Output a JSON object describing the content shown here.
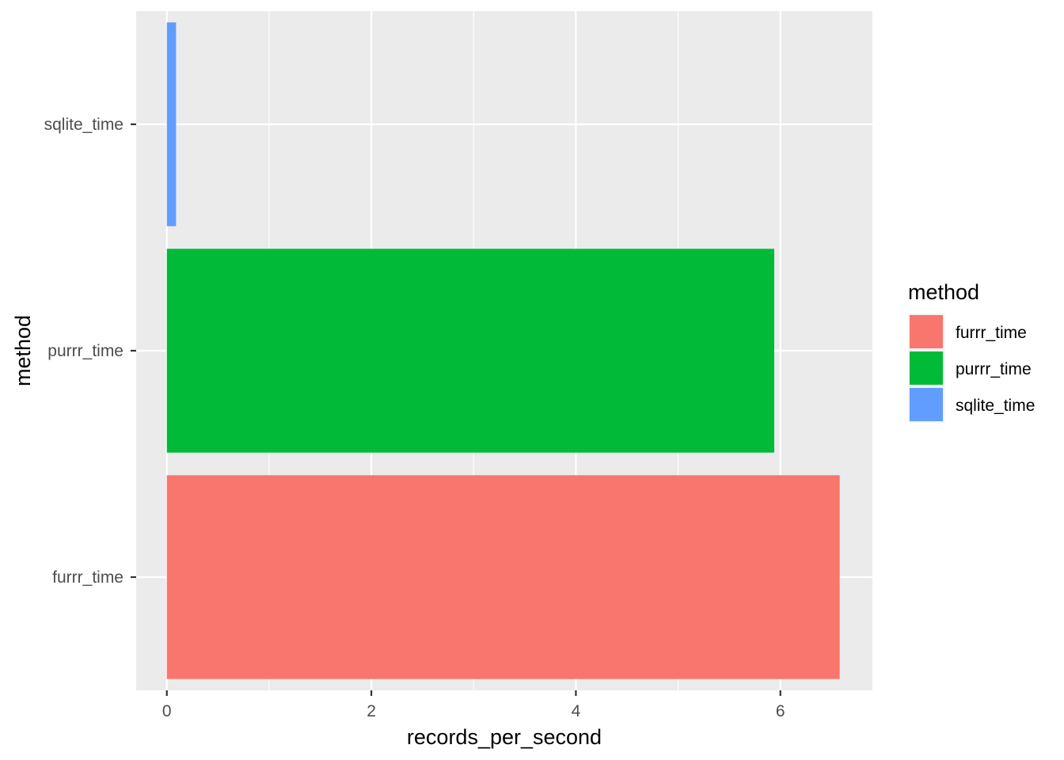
{
  "chart_data": {
    "type": "bar",
    "orientation": "horizontal",
    "categories": [
      "furrr_time",
      "purrr_time",
      "sqlite_time"
    ],
    "values": [
      6.58,
      5.94,
      0.09
    ],
    "colors": [
      "#F8766D",
      "#00BA38",
      "#619CFF"
    ],
    "xlabel": "records_per_second",
    "ylabel": "method",
    "xlim": [
      -0.3,
      6.9
    ],
    "xticks": [
      0,
      2,
      4,
      6
    ],
    "xtick_labels": [
      "0",
      "2",
      "4",
      "6"
    ],
    "grid": true,
    "panel_background": "#EBEBEB",
    "legend": {
      "title": "method",
      "placement": "right",
      "items": [
        "furrr_time",
        "purrr_time",
        "sqlite_time"
      ]
    }
  }
}
